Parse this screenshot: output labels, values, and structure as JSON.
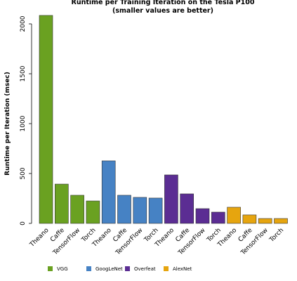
{
  "chart_data": {
    "type": "bar",
    "title": "Runtime per Training Iteration on the Tesla P100",
    "subtitle": "(smaller values are better)",
    "y_label": "Runtime per Iteration (msec)",
    "categories": [
      "Theano",
      "Caffe",
      "TensorFlow",
      "Torch",
      "Theano",
      "Caffe",
      "TensorFlow",
      "Torch",
      "Theano",
      "Caffe",
      "TensorFlow",
      "Torch",
      "Theano",
      "Caffe",
      "TensorFlow",
      "Torch"
    ],
    "series": [
      {
        "name": "VGG",
        "color": "#6aa121",
        "values": [
          2085,
          394,
          282,
          225,
          null,
          null,
          null,
          null,
          null,
          null,
          null,
          null,
          null,
          null,
          null,
          null
        ]
      },
      {
        "name": "GoogLeNet",
        "color": "#4682c4",
        "values": [
          null,
          null,
          null,
          null,
          627,
          282,
          261,
          254,
          null,
          null,
          null,
          null,
          null,
          null,
          null,
          null
        ]
      },
      {
        "name": "Overfeat",
        "color": "#5b2d93",
        "values": [
          null,
          null,
          null,
          null,
          null,
          null,
          null,
          null,
          486,
          296,
          148,
          113,
          null,
          null,
          null,
          null
        ]
      },
      {
        "name": "AlexNet",
        "color": "#e6a50f",
        "values": [
          null,
          null,
          null,
          null,
          null,
          null,
          null,
          null,
          null,
          null,
          null,
          null,
          162,
          85,
          49,
          49
        ]
      }
    ],
    "ylim": [
      0,
      2100
    ],
    "yticks": [
      0,
      500,
      1000,
      1500,
      2000
    ],
    "legend": "bottom"
  }
}
